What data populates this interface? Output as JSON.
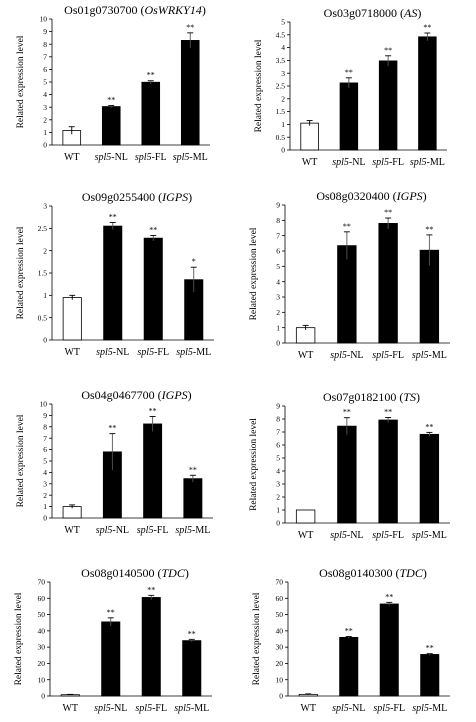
{
  "ylabel": "Related expression level",
  "chart_data": [
    {
      "type": "bar",
      "title_prefix": "Os01g0730700 (",
      "title_gene": "OsWRKY14",
      "title_suffix": ")",
      "ylabel": "Related expression level",
      "ylim": [
        0,
        10
      ],
      "yticks": [
        0,
        1,
        2,
        3,
        4,
        5,
        6,
        7,
        8,
        9,
        10
      ],
      "categories": [
        "WT",
        "spl5-NL",
        "spl5-FL",
        "spl5-ML"
      ],
      "values": [
        1.15,
        3.05,
        4.98,
        8.3
      ],
      "errors": [
        0.3,
        0.08,
        0.12,
        0.6
      ],
      "significance": [
        "",
        "**",
        "**",
        "**"
      ],
      "bar_colors": [
        "#ffffff",
        "#000000",
        "#000000",
        "#000000"
      ]
    },
    {
      "type": "bar",
      "title_prefix": "Os03g0718000 (",
      "title_gene": "AS",
      "title_suffix": ")",
      "ylabel": "Related expression level",
      "ylim": [
        0,
        5
      ],
      "yticks": [
        0,
        0.5,
        1,
        1.5,
        2,
        2.5,
        3,
        3.5,
        4,
        4.5,
        5
      ],
      "categories": [
        "WT",
        "spl5-NL",
        "spl5-FL",
        "spl5-ML"
      ],
      "values": [
        1.05,
        2.62,
        3.48,
        4.42
      ],
      "errors": [
        0.1,
        0.2,
        0.2,
        0.15
      ],
      "significance": [
        "",
        "**",
        "**",
        "**"
      ],
      "bar_colors": [
        "#ffffff",
        "#000000",
        "#000000",
        "#000000"
      ]
    },
    {
      "type": "bar",
      "title_prefix": "Os09g0255400 (",
      "title_gene": "IGPS",
      "title_suffix": ")",
      "ylabel": "Related expression level",
      "ylim": [
        0,
        3
      ],
      "yticks": [
        0,
        0.5,
        1,
        1.5,
        2,
        2.5,
        3
      ],
      "categories": [
        "WT",
        "spl5-NL",
        "spl5-FL",
        "spl5-ML"
      ],
      "values": [
        0.95,
        2.55,
        2.28,
        1.35
      ],
      "errors": [
        0.05,
        0.08,
        0.06,
        0.28
      ],
      "significance": [
        "",
        "**",
        "**",
        "*"
      ],
      "bar_colors": [
        "#ffffff",
        "#000000",
        "#000000",
        "#000000"
      ]
    },
    {
      "type": "bar",
      "title_prefix": "Os08g0320400 (",
      "title_gene": "IGPS",
      "title_suffix": ")",
      "ylabel": "Related expression level",
      "ylim": [
        0,
        9
      ],
      "yticks": [
        0,
        1,
        2,
        3,
        4,
        5,
        6,
        7,
        8,
        9
      ],
      "categories": [
        "WT",
        "spl5-NL",
        "spl5-FL",
        "spl5-ML"
      ],
      "values": [
        1.0,
        6.35,
        7.8,
        6.05
      ],
      "errors": [
        0.15,
        0.9,
        0.35,
        1.0
      ],
      "significance": [
        "",
        "**",
        "**",
        "**"
      ],
      "bar_colors": [
        "#ffffff",
        "#000000",
        "#000000",
        "#000000"
      ]
    },
    {
      "type": "bar",
      "title_prefix": "Os04g0467700 (",
      "title_gene": "IGPS",
      "title_suffix": ")",
      "ylabel": "Related expression level",
      "ylim": [
        0,
        10
      ],
      "yticks": [
        0,
        1,
        2,
        3,
        4,
        5,
        6,
        7,
        8,
        9,
        10
      ],
      "categories": [
        "WT",
        "spl5-NL",
        "spl5-FL",
        "spl5-ML"
      ],
      "values": [
        1.0,
        5.8,
        8.25,
        3.45
      ],
      "errors": [
        0.15,
        1.6,
        0.65,
        0.3
      ],
      "significance": [
        "",
        "**",
        "**",
        "**"
      ],
      "bar_colors": [
        "#ffffff",
        "#000000",
        "#000000",
        "#000000"
      ]
    },
    {
      "type": "bar",
      "title_prefix": "Os07g0182100 (",
      "title_gene": "TS",
      "title_suffix": ")",
      "ylabel": "Related expression level",
      "ylim": [
        0,
        9
      ],
      "yticks": [
        0,
        1,
        2,
        3,
        4,
        5,
        6,
        7,
        8,
        9
      ],
      "categories": [
        "WT",
        "spl5-NL",
        "spl5-FL",
        "spl5-ML"
      ],
      "values": [
        1.0,
        7.45,
        7.92,
        6.82
      ],
      "errors": [
        0.0,
        0.65,
        0.2,
        0.15
      ],
      "significance": [
        "",
        "**",
        "**",
        "**"
      ],
      "bar_colors": [
        "#ffffff",
        "#000000",
        "#000000",
        "#000000"
      ]
    },
    {
      "type": "bar",
      "title_prefix": "Os08g0140500 (",
      "title_gene": "TDC",
      "title_suffix": ")",
      "ylabel": "Related expression level",
      "ylim": [
        0,
        70
      ],
      "yticks": [
        0,
        10,
        20,
        30,
        40,
        50,
        60,
        70
      ],
      "categories": [
        "WT",
        "spl5-NL",
        "spl5-FL",
        "spl5-ML"
      ],
      "values": [
        0.8,
        45.5,
        60.5,
        34.0
      ],
      "errors": [
        0.2,
        2.5,
        1.3,
        0.8
      ],
      "significance": [
        "",
        "**",
        "**",
        "**"
      ],
      "bar_colors": [
        "#ffffff",
        "#000000",
        "#000000",
        "#000000"
      ]
    },
    {
      "type": "bar",
      "title_prefix": "Os08g0140300 (",
      "title_gene": "TDC",
      "title_suffix": ")",
      "ylabel": "Related expression level",
      "ylim": [
        0,
        70
      ],
      "yticks": [
        0,
        10,
        20,
        30,
        40,
        50,
        60,
        70
      ],
      "categories": [
        "WT",
        "spl5-NL",
        "spl5-FL",
        "spl5-ML"
      ],
      "values": [
        1.0,
        36.0,
        56.5,
        25.5
      ],
      "errors": [
        0.3,
        0.5,
        1.0,
        0.5
      ],
      "significance": [
        "",
        "**",
        "**",
        "**"
      ],
      "bar_colors": [
        "#ffffff",
        "#000000",
        "#000000",
        "#000000"
      ]
    }
  ]
}
